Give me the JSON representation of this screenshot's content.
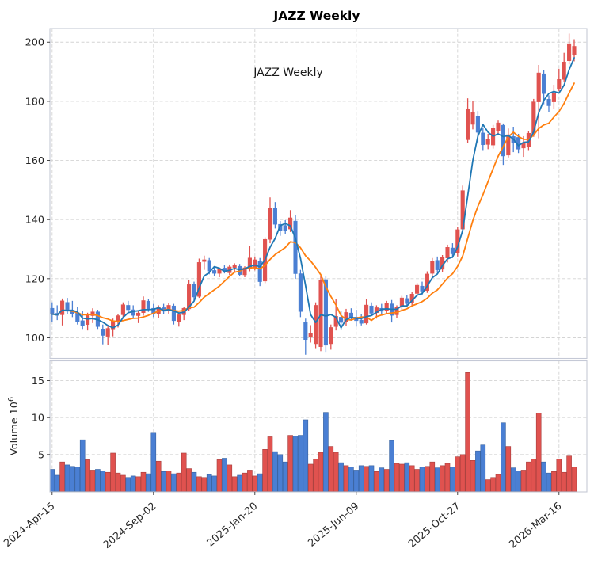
{
  "title": "JAZZ  Weekly",
  "annotation": "JAZZ  Weekly",
  "colors": {
    "up": "#e0524f",
    "down": "#4a7fd3",
    "up_edge": "#a63e3c",
    "down_edge": "#38629e",
    "ma_short": "#1f77b4",
    "ma_long": "#ff7f0e",
    "grid": "#d4d4d4",
    "spine": "#c5c9d6",
    "tick": "#333333",
    "background": "#ffffff"
  },
  "chart_data": {
    "type": "candlestick",
    "subtype": "weekly OHLC with volume subpanel",
    "title": "JAZZ  Weekly",
    "annotation_text": "JAZZ  Weekly",
    "ylabel_volume_text": "Volume  10",
    "ylabel_volume_exp": "6",
    "price_ticks": [
      100,
      120,
      140,
      160,
      180,
      200
    ],
    "volume_ticks": [
      5,
      10,
      15
    ],
    "price_range": [
      93,
      204.5
    ],
    "volume_range": [
      0,
      17.6
    ],
    "grid": "dashed",
    "up_means": "close >= open (red)",
    "down_means": "close < open (blue)",
    "ma_short_window": 4,
    "ma_long_window": 10,
    "x_ticks": [
      {
        "week": 0,
        "label": "2024-Apr-15"
      },
      {
        "week": 20,
        "label": "2024-Sep-02"
      },
      {
        "week": 40,
        "label": "2025-Jan-20"
      },
      {
        "week": 60,
        "label": "2025-Jun-09"
      },
      {
        "week": 80,
        "label": "2025-Oct-27"
      },
      {
        "week": 100,
        "label": "2026-Mar-16"
      }
    ],
    "ohlcv_columns": [
      "open",
      "high",
      "low",
      "close",
      "volume_millions"
    ],
    "ohlcv": [
      [
        110.0,
        112.0,
        105.5,
        108.0,
        3.0
      ],
      [
        108.3,
        111.0,
        106.0,
        107.6,
        2.2
      ],
      [
        107.8,
        113.3,
        104.2,
        112.5,
        4.0
      ],
      [
        112.0,
        113.5,
        108.0,
        109.0,
        3.6
      ],
      [
        109.2,
        112.5,
        107.0,
        108.2,
        3.4
      ],
      [
        108.5,
        110.5,
        104.5,
        105.5,
        3.3
      ],
      [
        105.8,
        109.0,
        103.0,
        104.0,
        7.0
      ],
      [
        104.5,
        108.5,
        102.5,
        107.8,
        4.3
      ],
      [
        107.5,
        110.0,
        105.0,
        108.8,
        2.9
      ],
      [
        108.8,
        109.5,
        103.0,
        103.8,
        3.0
      ],
      [
        103.0,
        104.5,
        97.8,
        100.8,
        2.8
      ],
      [
        100.5,
        104.0,
        97.5,
        103.2,
        2.6
      ],
      [
        103.0,
        106.5,
        100.5,
        105.8,
        5.2
      ],
      [
        105.5,
        108.0,
        103.5,
        107.5,
        2.5
      ],
      [
        107.8,
        112.0,
        106.5,
        111.2,
        2.2
      ],
      [
        111.0,
        112.5,
        108.5,
        109.5,
        1.9
      ],
      [
        109.5,
        111.0,
        106.5,
        107.6,
        2.1
      ],
      [
        107.5,
        109.0,
        105.0,
        108.4,
        2.0
      ],
      [
        108.5,
        114.0,
        107.5,
        112.6,
        2.6
      ],
      [
        112.4,
        113.0,
        108.8,
        109.6,
        2.4
      ],
      [
        110.0,
        111.5,
        107.0,
        108.0,
        8.0
      ],
      [
        108.2,
        111.0,
        106.8,
        110.4,
        4.1
      ],
      [
        110.2,
        111.5,
        108.0,
        109.0,
        2.7
      ],
      [
        109.2,
        111.8,
        108.2,
        111.0,
        2.8
      ],
      [
        110.8,
        111.5,
        104.5,
        105.8,
        2.4
      ],
      [
        105.5,
        108.5,
        103.8,
        107.8,
        2.5
      ],
      [
        107.8,
        110.5,
        106.0,
        110.0,
        5.2
      ],
      [
        109.8,
        119.5,
        109.0,
        118.0,
        3.1
      ],
      [
        118.2,
        119.0,
        112.5,
        113.8,
        2.6
      ],
      [
        114.0,
        126.8,
        113.5,
        125.5,
        2.0
      ],
      [
        125.8,
        127.8,
        123.0,
        126.4,
        1.9
      ],
      [
        126.2,
        127.0,
        121.5,
        122.6,
        2.3
      ],
      [
        122.8,
        124.0,
        120.8,
        121.8,
        2.1
      ],
      [
        121.8,
        123.8,
        120.5,
        123.4,
        4.3
      ],
      [
        123.6,
        124.5,
        121.8,
        122.2,
        4.5
      ],
      [
        122.0,
        124.8,
        121.2,
        124.0,
        3.6
      ],
      [
        123.8,
        125.2,
        122.0,
        124.5,
        2.0
      ],
      [
        124.2,
        125.0,
        120.8,
        121.4,
        2.2
      ],
      [
        121.3,
        124.2,
        120.5,
        123.7,
        2.5
      ],
      [
        123.5,
        131.0,
        122.5,
        127.0,
        2.9
      ],
      [
        123.7,
        127.5,
        122.8,
        126.4,
        2.1
      ],
      [
        126.0,
        127.0,
        117.5,
        119.0,
        2.4
      ],
      [
        119.2,
        134.0,
        118.5,
        133.3,
        5.7
      ],
      [
        133.3,
        147.5,
        132.0,
        143.8,
        7.4
      ],
      [
        143.8,
        145.9,
        137.0,
        138.4,
        5.4
      ],
      [
        138.4,
        139.5,
        134.5,
        136.2,
        5.0
      ],
      [
        138.0,
        139.8,
        135.0,
        136.3,
        4.0
      ],
      [
        136.8,
        143.2,
        135.8,
        140.6,
        7.6
      ],
      [
        139.5,
        141.5,
        120.0,
        121.7,
        7.5
      ],
      [
        121.7,
        123.0,
        107.0,
        108.9,
        7.6
      ],
      [
        105.2,
        106.5,
        94.3,
        99.4,
        9.7
      ],
      [
        100.3,
        104.3,
        98.4,
        101.5,
        3.7
      ],
      [
        98.0,
        112.0,
        96.5,
        111.0,
        4.4
      ],
      [
        97.0,
        121.0,
        95.5,
        119.5,
        5.3
      ],
      [
        119.7,
        120.8,
        95.0,
        97.5,
        10.7
      ],
      [
        98.0,
        104.5,
        96.0,
        103.5,
        6.1
      ],
      [
        103.8,
        113.2,
        102.5,
        107.3,
        5.3
      ],
      [
        107.0,
        109.0,
        102.8,
        105.2,
        3.9
      ],
      [
        105.4,
        109.8,
        104.0,
        108.6,
        3.5
      ],
      [
        108.4,
        110.0,
        105.8,
        106.8,
        3.3
      ],
      [
        107.0,
        109.5,
        103.8,
        105.8,
        2.9
      ],
      [
        106.0,
        108.0,
        104.2,
        104.9,
        3.5
      ],
      [
        105.0,
        113.0,
        104.5,
        111.1,
        3.4
      ],
      [
        110.8,
        112.0,
        107.5,
        108.3,
        3.5
      ],
      [
        108.5,
        111.0,
        106.5,
        110.2,
        2.7
      ],
      [
        110.0,
        111.5,
        107.8,
        109.0,
        3.2
      ],
      [
        109.2,
        112.5,
        108.0,
        111.8,
        3.0
      ],
      [
        111.5,
        112.8,
        105.2,
        107.6,
        6.9
      ],
      [
        107.8,
        111.0,
        106.8,
        110.4,
        3.8
      ],
      [
        110.5,
        114.2,
        109.5,
        113.5,
        3.7
      ],
      [
        113.3,
        114.5,
        110.5,
        111.6,
        3.9
      ],
      [
        111.8,
        115.5,
        111.0,
        114.8,
        3.5
      ],
      [
        115.0,
        118.5,
        114.0,
        117.8,
        3.0
      ],
      [
        117.5,
        119.0,
        114.5,
        115.8,
        3.3
      ],
      [
        116.0,
        122.5,
        115.2,
        121.6,
        3.4
      ],
      [
        121.8,
        127.0,
        120.5,
        126.0,
        4.0
      ],
      [
        126.2,
        127.5,
        122.0,
        123.0,
        3.2
      ],
      [
        123.2,
        128.0,
        122.2,
        127.2,
        3.5
      ],
      [
        127.0,
        131.5,
        125.5,
        130.6,
        3.8
      ],
      [
        130.4,
        132.0,
        127.0,
        128.4,
        3.3
      ],
      [
        128.6,
        137.5,
        127.5,
        136.6,
        4.7
      ],
      [
        136.8,
        151.5,
        135.5,
        149.8,
        5.0
      ],
      [
        167.0,
        181.0,
        166.0,
        177.5,
        16.1
      ],
      [
        172.2,
        180.2,
        170.5,
        176.2,
        4.2
      ],
      [
        175.0,
        176.7,
        166.0,
        169.5,
        5.5
      ],
      [
        169.3,
        171.0,
        163.5,
        165.3,
        6.3
      ],
      [
        165.4,
        169.0,
        163.8,
        167.2,
        1.6
      ],
      [
        165.2,
        172.0,
        164.0,
        170.8,
        1.9
      ],
      [
        170.0,
        173.5,
        168.5,
        172.7,
        2.3
      ],
      [
        171.9,
        172.5,
        158.5,
        161.5,
        9.3
      ],
      [
        161.8,
        170.8,
        161.0,
        168.7,
        6.1
      ],
      [
        168.1,
        171.4,
        162.8,
        166.0,
        3.2
      ],
      [
        167.8,
        169.0,
        162.5,
        163.8,
        2.8
      ],
      [
        164.2,
        168.2,
        161.2,
        166.0,
        2.9
      ],
      [
        164.7,
        170.0,
        163.5,
        169.2,
        4.0
      ],
      [
        169.2,
        180.8,
        168.0,
        179.8,
        4.4
      ],
      [
        179.8,
        192.3,
        167.5,
        189.6,
        10.6
      ],
      [
        189.3,
        190.5,
        179.0,
        182.6,
        4.0
      ],
      [
        180.7,
        182.0,
        176.3,
        178.5,
        2.5
      ],
      [
        179.8,
        185.6,
        177.5,
        182.6,
        2.7
      ],
      [
        184.3,
        191.0,
        183.4,
        187.4,
        4.4
      ],
      [
        187.4,
        196.4,
        186.5,
        193.3,
        2.6
      ],
      [
        193.7,
        202.9,
        192.5,
        199.5,
        4.8
      ],
      [
        195.8,
        201.0,
        193.5,
        198.6,
        3.3
      ]
    ]
  }
}
